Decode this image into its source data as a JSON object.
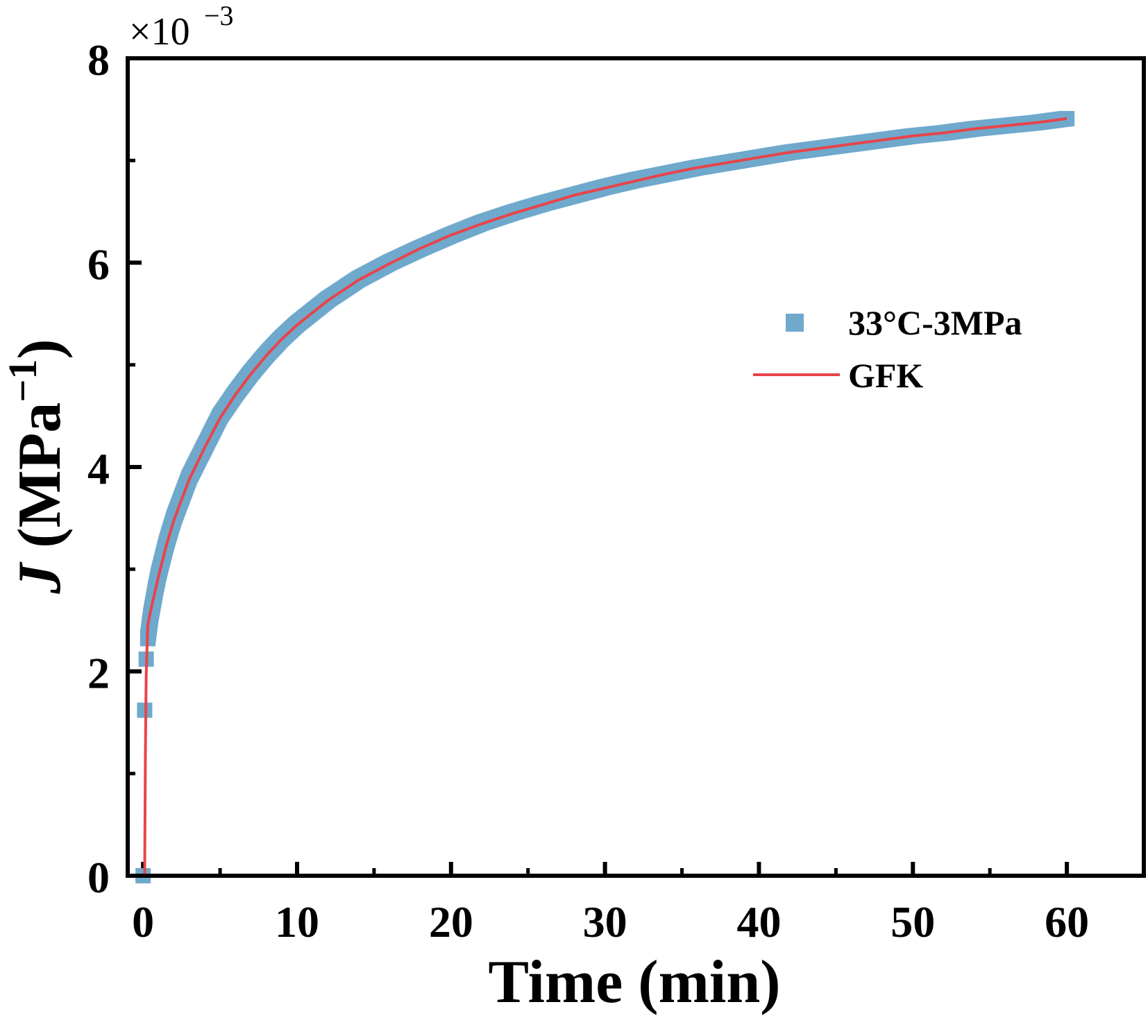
{
  "chart_data": {
    "type": "scatter",
    "title": "",
    "xlabel": "Time (min)",
    "ylabel_symbol": "J",
    "ylabel_unit": " (MPa",
    "ylabel_exp": "−1",
    "ylabel_close": ")",
    "y_multiplier_base": "×10",
    "y_multiplier_exp": "−3",
    "xlim": [
      -1,
      65
    ],
    "ylim": [
      0,
      8
    ],
    "x_ticks": [
      0,
      10,
      20,
      30,
      40,
      50,
      60
    ],
    "x_minor_ticks": [
      5,
      15,
      25,
      35,
      45,
      55
    ],
    "y_ticks": [
      0,
      2,
      4,
      6,
      8
    ],
    "y_minor_ticks": [
      1,
      3,
      5,
      7
    ],
    "grid": false,
    "legend_position": "right",
    "series": [
      {
        "name": "33°C-3MPa",
        "kind": "markers",
        "color": "#6fa9cc",
        "x": [
          0,
          0.1,
          0.2,
          0.3,
          0.5,
          0.8,
          1,
          1.5,
          2,
          3,
          4,
          5,
          6,
          7,
          8,
          9,
          10,
          12,
          14,
          16,
          18,
          20,
          22,
          24,
          26,
          28,
          30,
          32,
          34,
          36,
          38,
          40,
          42,
          44,
          46,
          48,
          50,
          52,
          54,
          56,
          58,
          60
        ],
        "y": [
          0.0,
          1.62,
          2.12,
          2.32,
          2.55,
          2.8,
          2.95,
          3.25,
          3.5,
          3.9,
          4.2,
          4.5,
          4.72,
          4.92,
          5.1,
          5.26,
          5.4,
          5.64,
          5.84,
          6.0,
          6.14,
          6.27,
          6.39,
          6.49,
          6.58,
          6.66,
          6.74,
          6.81,
          6.87,
          6.93,
          6.98,
          7.03,
          7.08,
          7.12,
          7.16,
          7.2,
          7.24,
          7.27,
          7.31,
          7.34,
          7.37,
          7.41
        ]
      },
      {
        "name": "GFK",
        "kind": "line",
        "color": "#e8444a",
        "x": [
          0.1,
          0.15,
          0.2,
          0.3,
          0.5,
          0.8,
          1,
          1.5,
          2,
          3,
          4,
          5,
          6,
          7,
          8,
          9,
          10,
          12,
          14,
          16,
          18,
          20,
          22,
          24,
          26,
          28,
          30,
          32,
          34,
          36,
          38,
          40,
          42,
          44,
          46,
          48,
          50,
          52,
          54,
          56,
          58,
          60
        ],
        "y": [
          0.0,
          1.2,
          1.95,
          2.45,
          2.6,
          2.8,
          2.93,
          3.23,
          3.48,
          3.88,
          4.19,
          4.48,
          4.71,
          4.91,
          5.09,
          5.25,
          5.39,
          5.63,
          5.83,
          5.99,
          6.14,
          6.27,
          6.38,
          6.48,
          6.57,
          6.66,
          6.73,
          6.8,
          6.87,
          6.93,
          6.98,
          7.03,
          7.08,
          7.12,
          7.16,
          7.2,
          7.24,
          7.27,
          7.31,
          7.34,
          7.37,
          7.41
        ]
      }
    ]
  }
}
